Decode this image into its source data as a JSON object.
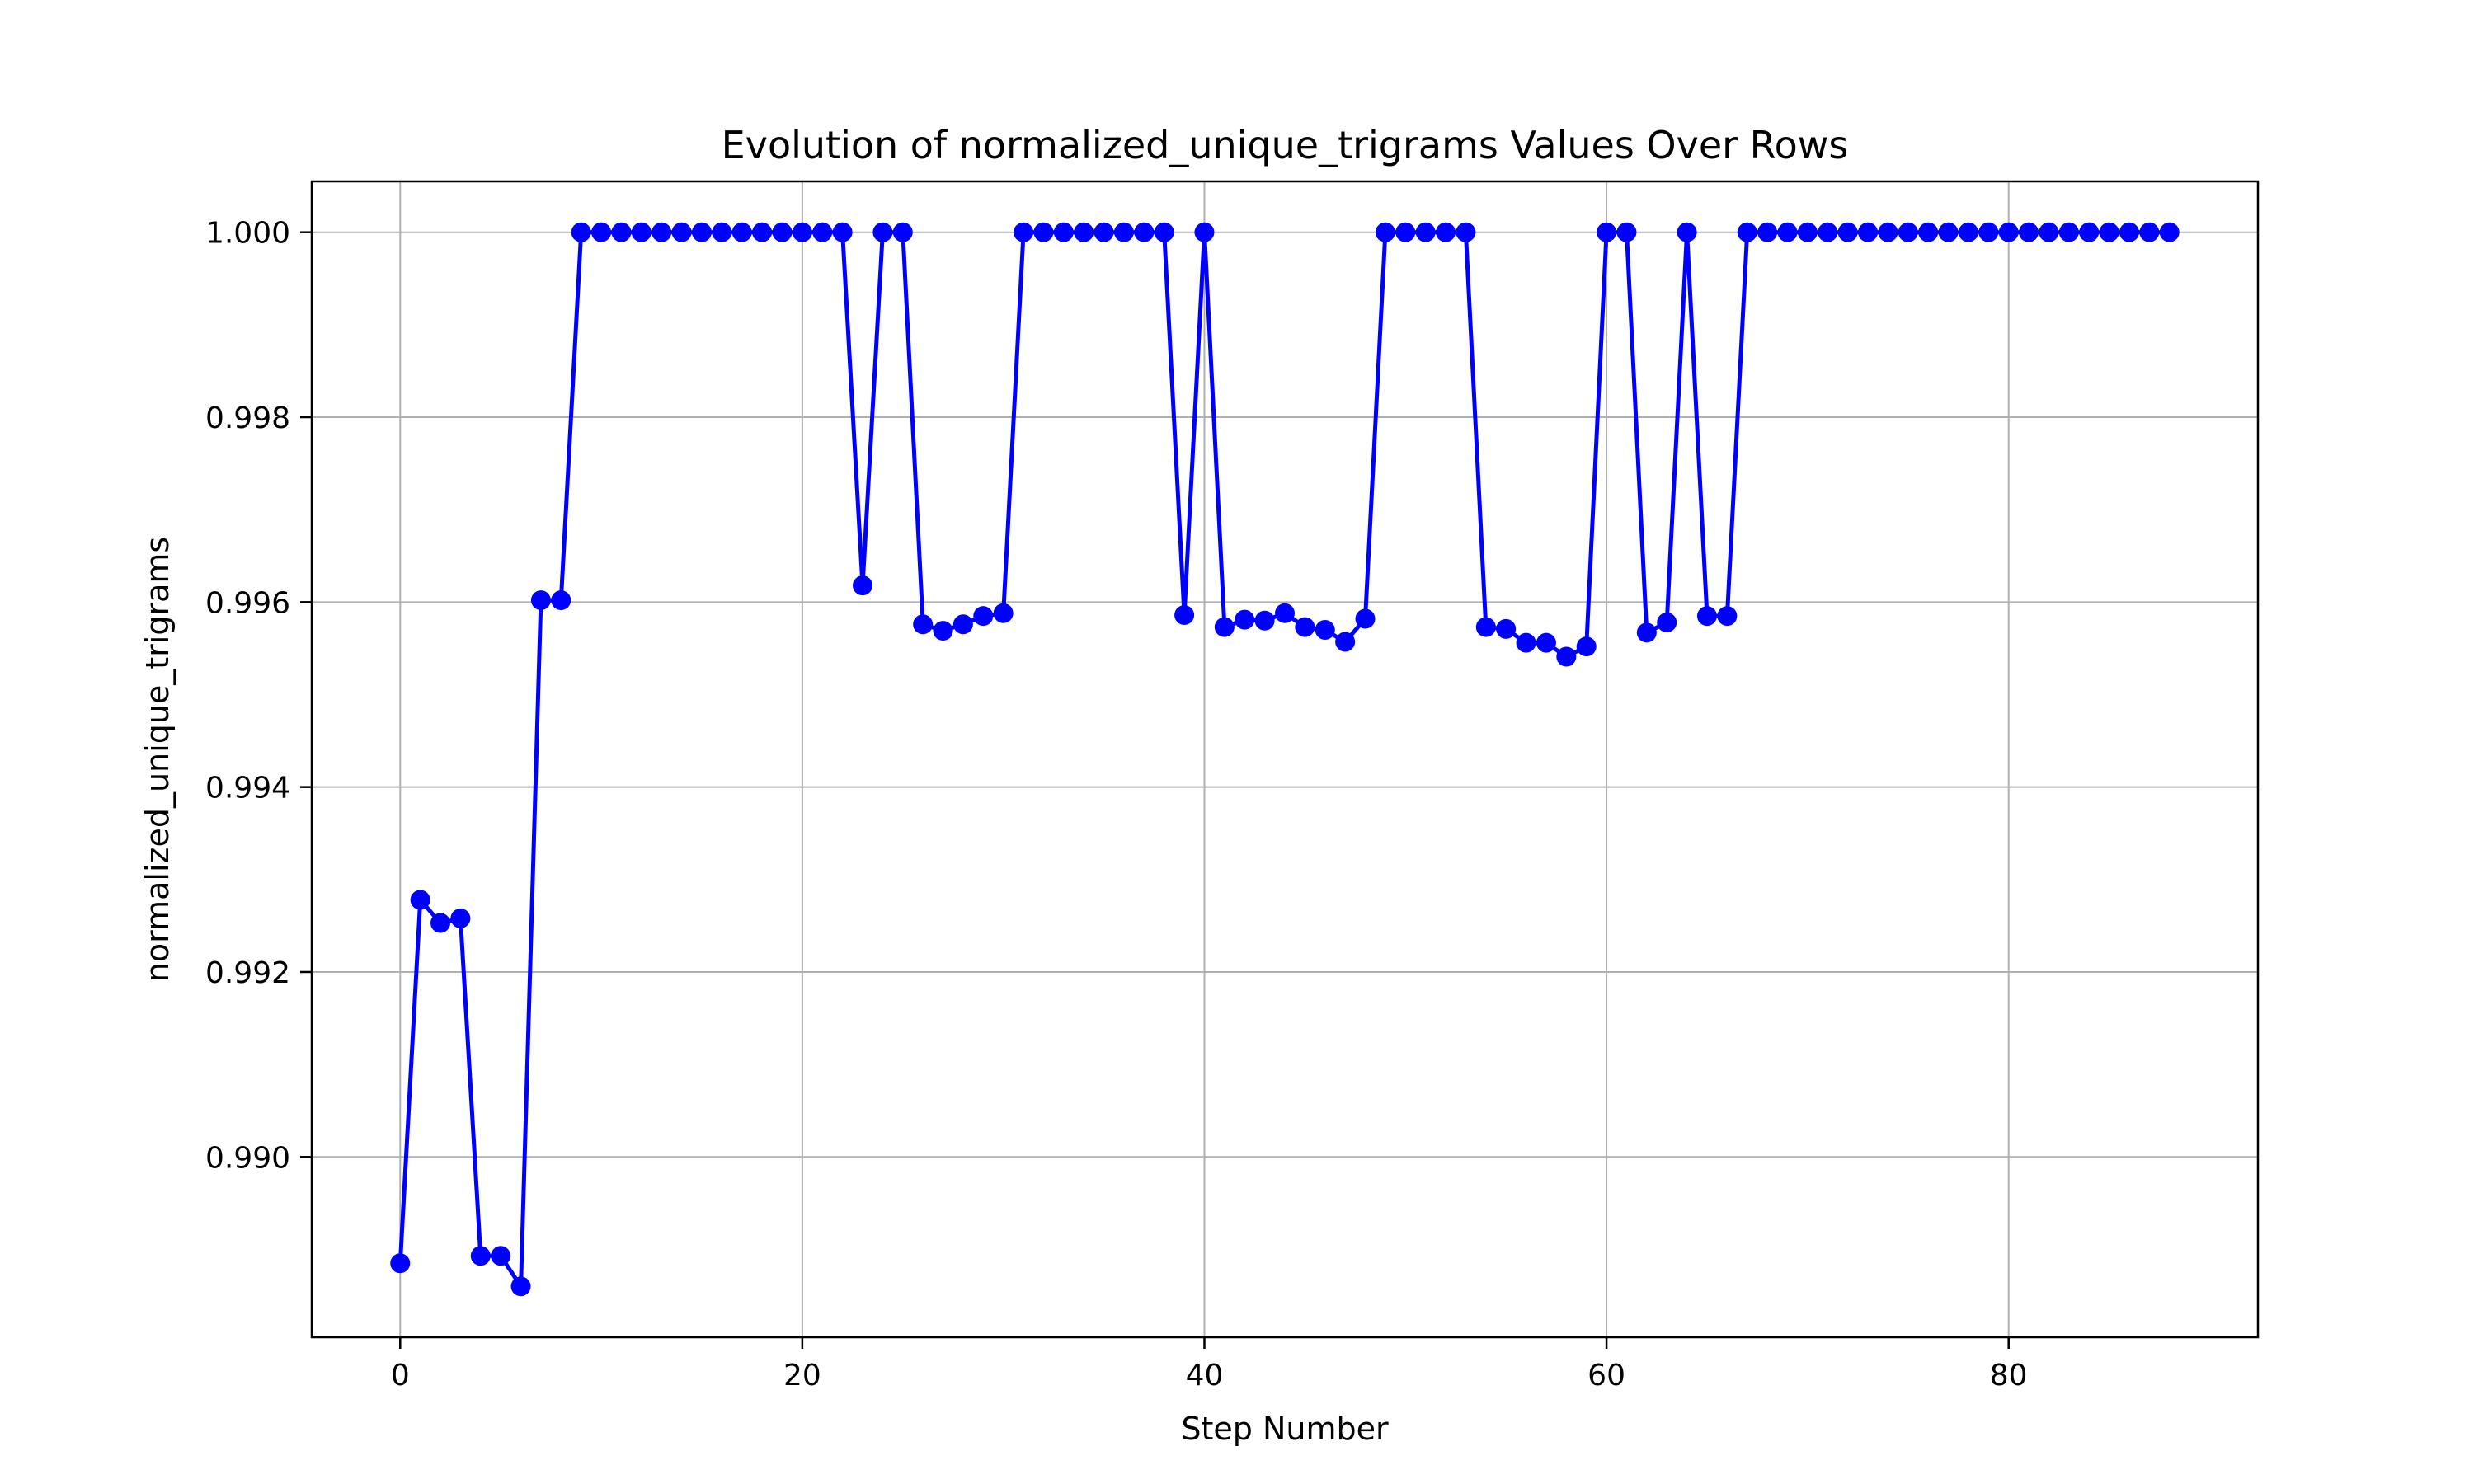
{
  "chart_data": {
    "type": "line",
    "title": "Evolution of normalized_unique_trigrams Values Over Rows",
    "xlabel": "Step Number",
    "ylabel": "normalized_unique_trigrams",
    "xlim": [
      -4.4,
      92.4
    ],
    "ylim": [
      0.98805,
      1.00055
    ],
    "xticks": [
      0,
      20,
      40,
      60,
      80
    ],
    "yticks": [
      0.99,
      0.992,
      0.994,
      0.996,
      0.998,
      1.0
    ],
    "xtick_labels": [
      "0",
      "20",
      "40",
      "60",
      "80"
    ],
    "ytick_labels": [
      "0.990",
      "0.992",
      "0.994",
      "0.996",
      "0.998",
      "1.000"
    ],
    "grid": true,
    "series_color": "#0000ff",
    "grid_color": "#b0b0b0",
    "series": [
      {
        "x": [
          0,
          1,
          2,
          3,
          4,
          5,
          6,
          7,
          8,
          9,
          10,
          11,
          12,
          13,
          14,
          15,
          16,
          17,
          18,
          19,
          20,
          21,
          22,
          23,
          24,
          25,
          26,
          27,
          28,
          29,
          30,
          31,
          32,
          33,
          34,
          35,
          36,
          37,
          38,
          39,
          40,
          41,
          42,
          43,
          44,
          45,
          46,
          47,
          48,
          49,
          50,
          51,
          52,
          53,
          54,
          55,
          56,
          57,
          58,
          59,
          60,
          61,
          62,
          63,
          64,
          65,
          66,
          67,
          68,
          69,
          70,
          71,
          72,
          73,
          74,
          75,
          76,
          77,
          78,
          79,
          80,
          81,
          82,
          83,
          84,
          85,
          86,
          87,
          88
        ],
        "values": [
          0.98885,
          0.99278,
          0.99253,
          0.99258,
          0.98893,
          0.98893,
          0.9886,
          0.99602,
          0.99602,
          1.0,
          1.0,
          1.0,
          1.0,
          1.0,
          1.0,
          1.0,
          1.0,
          1.0,
          1.0,
          1.0,
          1.0,
          1.0,
          1.0,
          0.99618,
          1.0,
          1.0,
          0.99576,
          0.99569,
          0.99576,
          0.99585,
          0.99588,
          1.0,
          1.0,
          1.0,
          1.0,
          1.0,
          1.0,
          1.0,
          1.0,
          0.99586,
          1.0,
          0.99573,
          0.99581,
          0.9958,
          0.99588,
          0.99573,
          0.9957,
          0.99557,
          0.99582,
          1.0,
          1.0,
          1.0,
          1.0,
          1.0,
          0.99573,
          0.99571,
          0.99556,
          0.99556,
          0.99541,
          0.99552,
          1.0,
          1.0,
          0.99567,
          0.99578,
          1.0,
          0.99585,
          0.99585,
          1.0,
          1.0,
          1.0,
          1.0,
          1.0,
          1.0,
          1.0,
          1.0,
          1.0,
          1.0,
          1.0,
          1.0,
          1.0,
          1.0,
          1.0,
          1.0,
          1.0,
          1.0,
          1.0,
          1.0,
          1.0,
          1.0
        ]
      }
    ]
  }
}
